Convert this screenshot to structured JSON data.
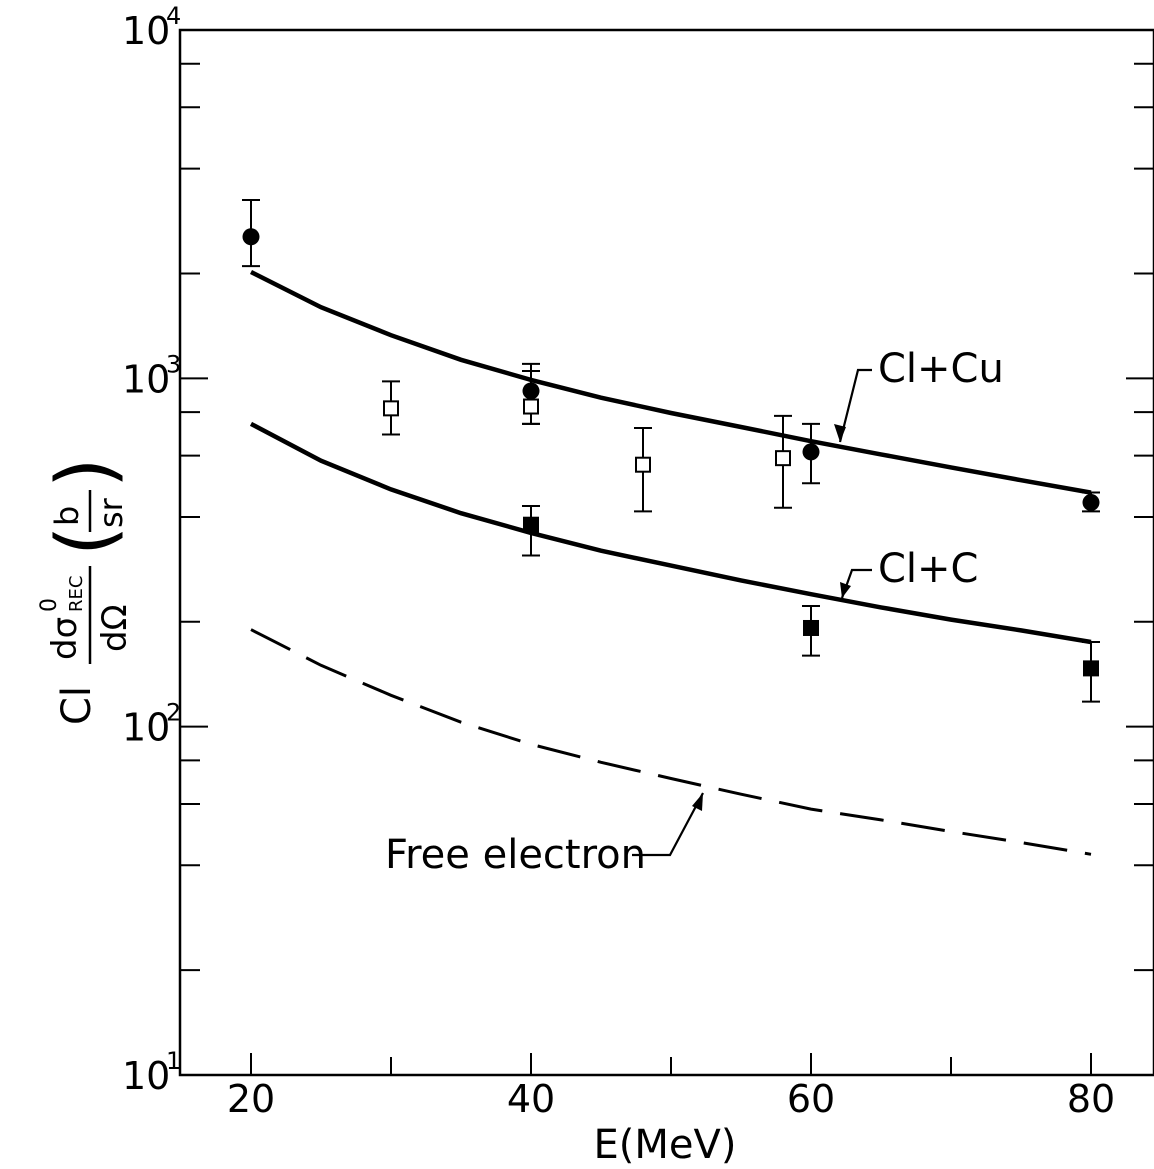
{
  "chart_data": {
    "type": "line",
    "xlabel": "E(MeV)",
    "ylabel": {
      "prefix": "Cl",
      "numerator": "dσ",
      "superscript": "0",
      "subscript": "REC",
      "denominator": "dΩ",
      "unit_numerator": "b",
      "unit_denominator": "sr"
    },
    "x_scale": "linear",
    "y_scale": "log",
    "xlim": [
      15,
      85
    ],
    "ylim": [
      10,
      10000
    ],
    "x_ticks": [
      20,
      30,
      40,
      50,
      60,
      70,
      80
    ],
    "x_tick_labels": [
      {
        "value": 20,
        "label": "20"
      },
      {
        "value": 40,
        "label": "40"
      },
      {
        "value": 60,
        "label": "60"
      },
      {
        "value": 80,
        "label": "80"
      }
    ],
    "y_tick_labels": [
      {
        "value": 10,
        "base": "10",
        "exp": "1"
      },
      {
        "value": 100,
        "base": "10",
        "exp": "2"
      },
      {
        "value": 1000,
        "base": "10",
        "exp": "3"
      },
      {
        "value": 10000,
        "base": "10",
        "exp": "4"
      }
    ],
    "grid": false,
    "series": [
      {
        "name": "Cl+Cu",
        "style": "solid",
        "x": [
          20,
          25,
          30,
          35,
          40,
          45,
          50,
          55,
          60,
          65,
          70,
          75,
          80
        ],
        "y": [
          2020,
          1600,
          1330,
          1130,
          990,
          880,
          795,
          725,
          660,
          605,
          555,
          510,
          470
        ]
      },
      {
        "name": "Cl+C",
        "style": "solid",
        "x": [
          20,
          25,
          30,
          35,
          40,
          45,
          50,
          55,
          60,
          65,
          70,
          75,
          80
        ],
        "y": [
          740,
          580,
          480,
          410,
          360,
          320,
          290,
          263,
          240,
          220,
          203,
          189,
          175
        ]
      },
      {
        "name": "Free electron",
        "style": "dashed",
        "x": [
          20,
          25,
          30,
          35,
          40,
          45,
          50,
          55,
          60,
          65,
          70,
          75,
          80
        ],
        "y": [
          190,
          150,
          123,
          103,
          89,
          79,
          71,
          64,
          58,
          54,
          50,
          46.5,
          43
        ]
      }
    ],
    "points": [
      {
        "group": "Cl+Cu",
        "marker": "filled-circle",
        "x": 20,
        "y": 2550,
        "err_low": 2100,
        "err_high": 3250
      },
      {
        "group": "Cl+Cu",
        "marker": "filled-circle",
        "x": 40,
        "y": 920,
        "err_low": 740,
        "err_high": 1100
      },
      {
        "group": "Cl+Cu",
        "marker": "filled-circle",
        "x": 60,
        "y": 615,
        "err_low": 500,
        "err_high": 740
      },
      {
        "group": "Cl+Cu",
        "marker": "filled-circle",
        "x": 80,
        "y": 440,
        "err_low": 415,
        "err_high": 470
      },
      {
        "group": "Cl+C",
        "marker": "filled-square",
        "x": 40,
        "y": 380,
        "err_low": 310,
        "err_high": 430
      },
      {
        "group": "Cl+C",
        "marker": "filled-square",
        "x": 60,
        "y": 192,
        "err_low": 160,
        "err_high": 222
      },
      {
        "group": "Cl+C",
        "marker": "filled-square",
        "x": 80,
        "y": 147,
        "err_low": 118,
        "err_high": 175
      },
      {
        "group": "open",
        "marker": "open-square",
        "x": 30,
        "y": 820,
        "err_low": 690,
        "err_high": 980
      },
      {
        "group": "open",
        "marker": "open-square",
        "x": 40,
        "y": 830,
        "err_low": 740,
        "err_high": 1050
      },
      {
        "group": "open",
        "marker": "open-square",
        "x": 48,
        "y": 565,
        "err_low": 415,
        "err_high": 720
      },
      {
        "group": "open",
        "marker": "open-square",
        "x": 58,
        "y": 590,
        "err_low": 425,
        "err_high": 780
      }
    ],
    "annotations": [
      {
        "text": "Cl+Cu",
        "points_to_series": "Cl+Cu"
      },
      {
        "text": "Cl+C",
        "points_to_series": "Cl+C"
      },
      {
        "text": "Free electron",
        "points_to_series": "Free electron"
      }
    ]
  }
}
